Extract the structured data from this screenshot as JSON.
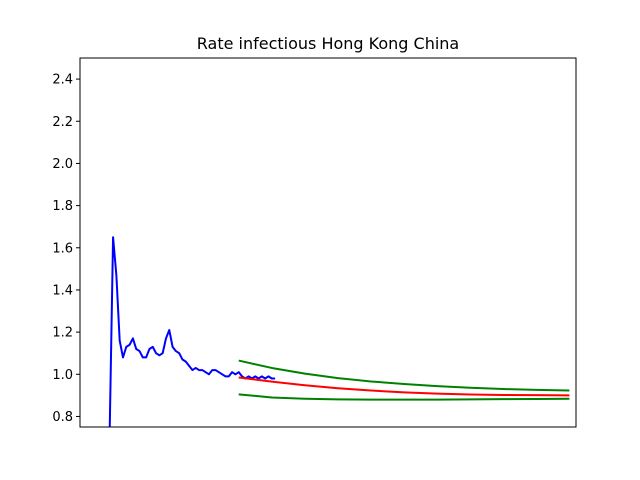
{
  "chart_data": {
    "type": "line",
    "title": "Rate infectious Hong Kong China",
    "xlabel": "",
    "ylabel": "",
    "xlim": [
      0,
      150
    ],
    "ylim": [
      0.75,
      2.5
    ],
    "x_ticks_shown": false,
    "y_ticks": [
      0.8,
      1.0,
      1.2,
      1.4,
      1.6,
      1.8,
      2.0,
      2.2,
      2.4
    ],
    "y_tick_labels": [
      "0.8",
      "1.0",
      "1.2",
      "1.4",
      "1.6",
      "1.8",
      "2.0",
      "2.2",
      "2.4"
    ],
    "grid": false,
    "legend": "none",
    "series": [
      {
        "role": "observed",
        "color": "#0000ff",
        "x": [
          9,
          10,
          11,
          12,
          13,
          14,
          15,
          16,
          17,
          18,
          19,
          20,
          21,
          22,
          23,
          24,
          25,
          26,
          27,
          28,
          29,
          30,
          31,
          32,
          33,
          34,
          35,
          36,
          37,
          38,
          39,
          40,
          41,
          42,
          43,
          44,
          45,
          46,
          47,
          48,
          49,
          50,
          51,
          52,
          53,
          54,
          55,
          56,
          57,
          58,
          59
        ],
        "y": [
          0.75,
          1.65,
          1.47,
          1.16,
          1.08,
          1.13,
          1.14,
          1.17,
          1.12,
          1.11,
          1.08,
          1.08,
          1.12,
          1.13,
          1.1,
          1.09,
          1.1,
          1.17,
          1.21,
          1.13,
          1.11,
          1.1,
          1.07,
          1.06,
          1.04,
          1.02,
          1.03,
          1.02,
          1.02,
          1.01,
          1.0,
          1.02,
          1.02,
          1.01,
          1.0,
          0.99,
          0.99,
          1.01,
          1.0,
          1.01,
          0.99,
          0.98,
          0.99,
          0.98,
          0.99,
          0.98,
          0.99,
          0.98,
          0.99,
          0.98,
          0.98
        ]
      },
      {
        "role": "forecast",
        "color": "#ff0000",
        "x": [
          48,
          58,
          68,
          78,
          88,
          98,
          108,
          118,
          128,
          138,
          148
        ],
        "y": [
          0.985,
          0.965,
          0.948,
          0.934,
          0.923,
          0.914,
          0.908,
          0.904,
          0.902,
          0.901,
          0.9
        ]
      },
      {
        "role": "upper-bound",
        "color": "#008000",
        "x": [
          48,
          58,
          68,
          78,
          88,
          98,
          108,
          118,
          128,
          138,
          148
        ],
        "y": [
          1.065,
          1.03,
          1.003,
          0.982,
          0.966,
          0.954,
          0.944,
          0.936,
          0.93,
          0.926,
          0.923
        ]
      },
      {
        "role": "lower-bound",
        "color": "#008000",
        "x": [
          48,
          58,
          68,
          78,
          88,
          98,
          108,
          118,
          128,
          138,
          148
        ],
        "y": [
          0.905,
          0.89,
          0.884,
          0.881,
          0.88,
          0.88,
          0.88,
          0.881,
          0.882,
          0.883,
          0.884
        ]
      }
    ]
  }
}
